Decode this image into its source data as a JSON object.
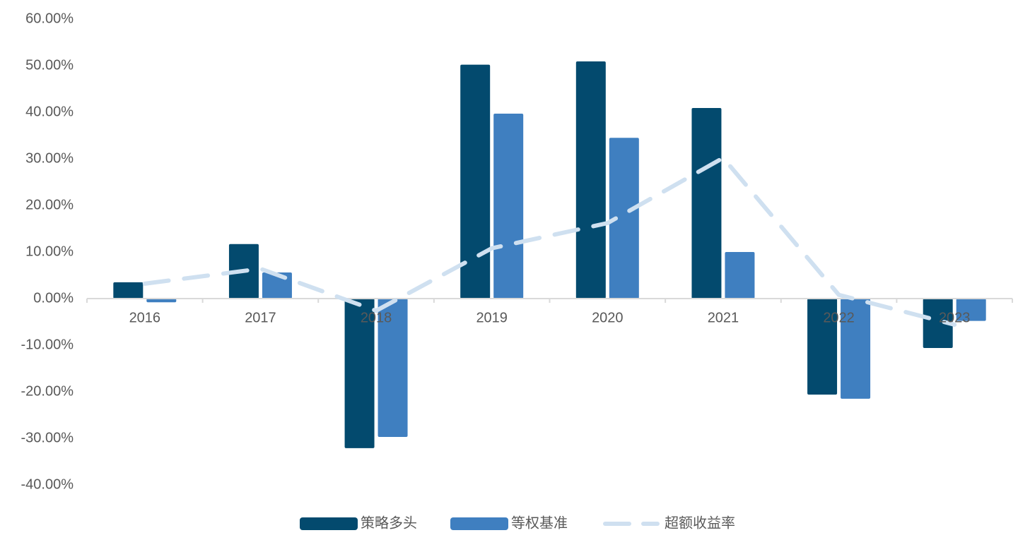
{
  "chart_data": {
    "type": "bar",
    "categories": [
      "2016",
      "2017",
      "2018",
      "2019",
      "2020",
      "2021",
      "2022",
      "2023"
    ],
    "series": [
      {
        "name": "策略多头",
        "color": "#034a6e",
        "type": "bar",
        "values": [
          3.5,
          11.7,
          -32.1,
          50.2,
          50.9,
          40.9,
          -20.6,
          -10.6
        ]
      },
      {
        "name": "等权基准",
        "color": "#3f7fc0",
        "type": "bar",
        "values": [
          -0.8,
          5.6,
          -29.7,
          39.7,
          34.5,
          10.0,
          -21.5,
          -4.8
        ]
      },
      {
        "name": "超额收益率",
        "color": "#cfe0f0",
        "type": "line",
        "values": [
          3.2,
          6.4,
          -2.6,
          10.8,
          16.2,
          30.2,
          0.8,
          -5.6
        ]
      }
    ],
    "ylim": [
      -40,
      60
    ],
    "yticks": [
      {
        "value": -40,
        "label": "-40.00%"
      },
      {
        "value": -30,
        "label": "-30.00%"
      },
      {
        "value": -20,
        "label": "-20.00%"
      },
      {
        "value": -10,
        "label": "-10.00%"
      },
      {
        "value": 0,
        "label": "0.00%"
      },
      {
        "value": 10,
        "label": "10.00%"
      },
      {
        "value": 20,
        "label": "20.00%"
      },
      {
        "value": 30,
        "label": "30.00%"
      },
      {
        "value": 40,
        "label": "40.00%"
      },
      {
        "value": 50,
        "label": "50.00%"
      },
      {
        "value": 60,
        "label": "60.00%"
      }
    ],
    "grid": false,
    "legend": "bottom"
  }
}
